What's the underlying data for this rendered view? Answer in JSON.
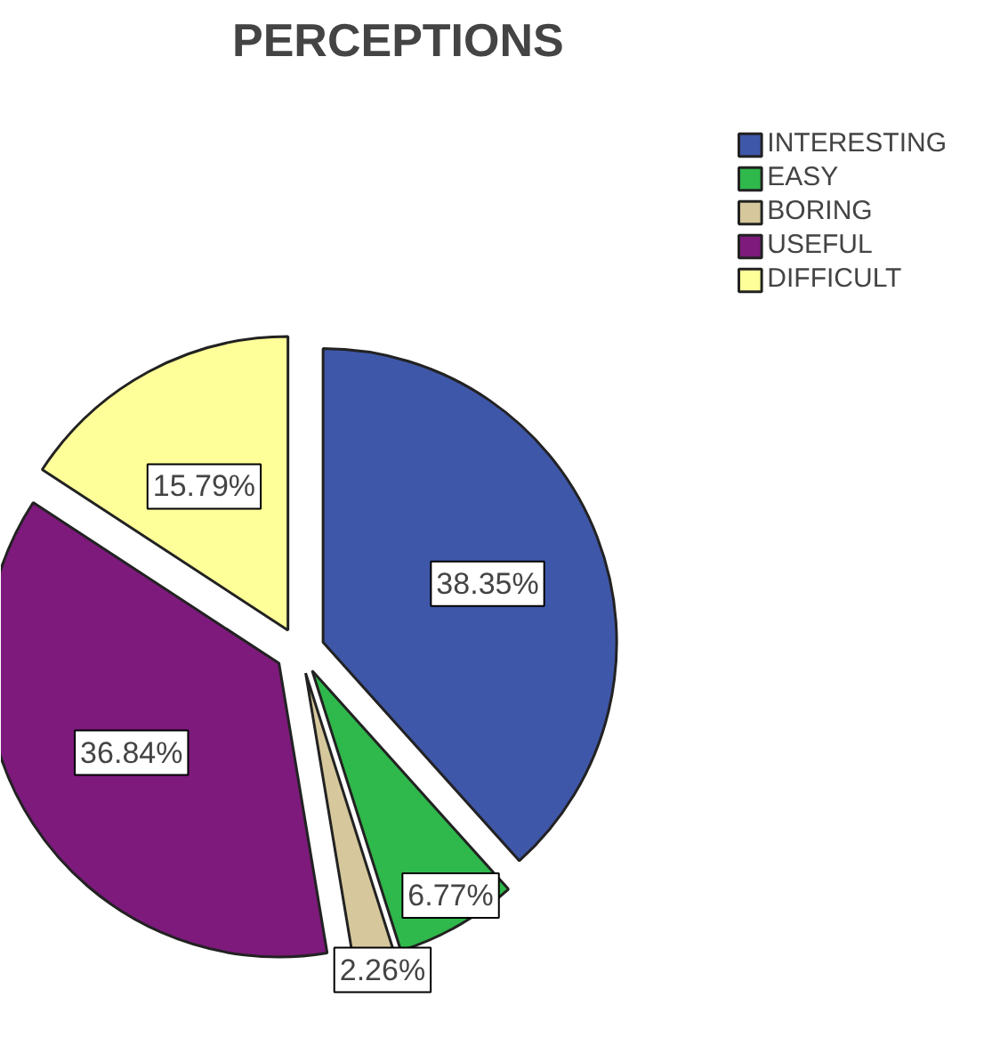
{
  "chart_data": {
    "type": "pie",
    "title": "PERCEPTIONS",
    "categories": [
      "INTERESTING",
      "EASY",
      "BORING",
      "USEFUL",
      "DIFFICULT"
    ],
    "values": [
      38.35,
      6.77,
      2.26,
      36.84,
      15.79
    ],
    "value_labels": [
      "38.35%",
      "6.77%",
      "2.26%",
      "36.84%",
      "15.79%"
    ],
    "colors": [
      "#3f57a8",
      "#2fb84b",
      "#d6c89c",
      "#7d1a7c",
      "#ffff99"
    ],
    "legend": "top right"
  }
}
